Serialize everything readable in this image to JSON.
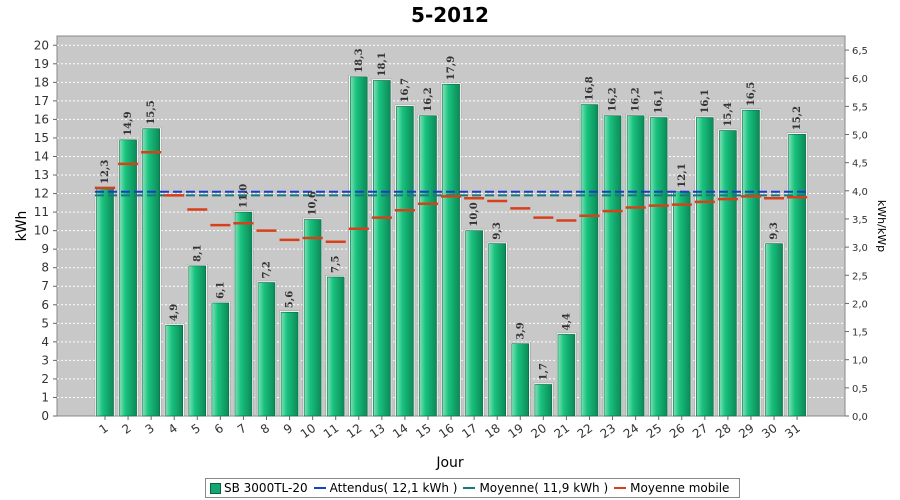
{
  "chart_data": {
    "type": "bar",
    "title": "5-2012",
    "xlabel": "Jour",
    "ylabel": "kWh",
    "y2label": "kWh/kWp",
    "ylim": [
      0,
      20.5
    ],
    "y2lim": [
      0,
      6.75
    ],
    "yticks": [
      0,
      1,
      2,
      3,
      4,
      5,
      6,
      7,
      8,
      9,
      10,
      11,
      12,
      13,
      14,
      15,
      16,
      17,
      18,
      19,
      20
    ],
    "y2ticks": [
      "0,0",
      "0,5",
      "1,0",
      "1,5",
      "2,0",
      "2,5",
      "3,0",
      "3,5",
      "4,0",
      "4,5",
      "5,0",
      "5,5",
      "6,0",
      "6,5"
    ],
    "categories": [
      "1",
      "2",
      "3",
      "4",
      "5",
      "6",
      "7",
      "8",
      "9",
      "10",
      "11",
      "12",
      "13",
      "14",
      "15",
      "16",
      "17",
      "18",
      "19",
      "20",
      "21",
      "22",
      "23",
      "24",
      "25",
      "26",
      "27",
      "28",
      "29",
      "30",
      "31"
    ],
    "series": [
      {
        "name": "SB 3000TL-20",
        "values": [
          12.3,
          14.9,
          15.5,
          4.9,
          8.1,
          6.1,
          11.0,
          7.2,
          5.6,
          10.6,
          7.5,
          18.3,
          18.1,
          16.7,
          16.2,
          17.9,
          10.0,
          9.3,
          3.9,
          1.7,
          4.4,
          16.8,
          16.2,
          16.2,
          16.1,
          12.1,
          16.1,
          15.4,
          16.5,
          9.3,
          15.2
        ],
        "labels": [
          "12,3",
          "14,9",
          "15,5",
          "4,9",
          "8,1",
          "6,1",
          "11,0",
          "7,2",
          "5,6",
          "10,6",
          "7,5",
          "18,3",
          "18,1",
          "16,7",
          "16,2",
          "17,9",
          "10,0",
          "9,3",
          "3,9",
          "1,7",
          "4,4",
          "16,8",
          "16,2",
          "16,2",
          "16,1",
          "12,1",
          "16,1",
          "15,4",
          "16,5",
          "9,3",
          "15,2"
        ],
        "color": "#10a870"
      },
      {
        "name": "Attendus( 12,1 kWh )",
        "value": 12.1,
        "color": "#1a3cc8"
      },
      {
        "name": "Moyenne( 11,9 kWh )",
        "value": 11.9,
        "color": "#1a7a7a"
      },
      {
        "name": "Moyenne mobile",
        "values": [
          12.3,
          13.6,
          14.23,
          11.9,
          11.14,
          10.3,
          10.4,
          10.0,
          9.5,
          9.6,
          9.4,
          10.1,
          10.7,
          11.1,
          11.45,
          11.85,
          11.75,
          11.6,
          11.2,
          10.7,
          10.55,
          10.8,
          11.05,
          11.25,
          11.35,
          11.4,
          11.55,
          11.7,
          11.85,
          11.75,
          11.8
        ],
        "color": "#d8401a"
      }
    ],
    "grid": true,
    "legend": "bottom"
  }
}
